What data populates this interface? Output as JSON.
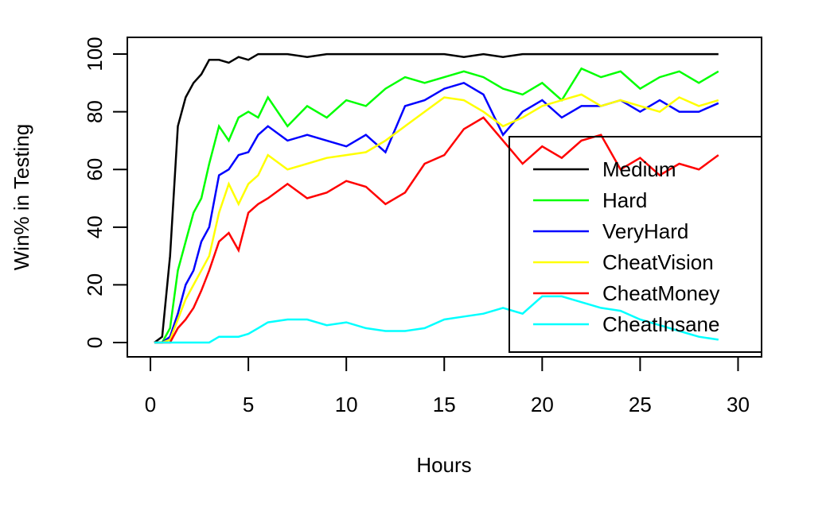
{
  "chart_data": {
    "type": "line",
    "xlabel": "Hours",
    "ylabel": "Win% in Testing",
    "x": [
      0.2,
      0.6,
      1,
      1.4,
      1.8,
      2.2,
      2.6,
      3,
      3.5,
      4,
      4.5,
      5,
      5.5,
      6,
      7,
      8,
      9,
      10,
      11,
      12,
      13,
      14,
      15,
      16,
      17,
      18,
      19,
      20,
      21,
      22,
      23,
      24,
      25,
      26,
      27,
      28,
      29
    ],
    "series": [
      {
        "name": "Medium",
        "color": "#000000",
        "values": [
          0,
          2,
          30,
          75,
          85,
          90,
          93,
          98,
          98,
          97,
          99,
          98,
          100,
          100,
          100,
          99,
          100,
          100,
          100,
          100,
          100,
          100,
          100,
          99,
          100,
          99,
          100,
          100,
          100,
          100,
          100,
          100,
          100,
          100,
          100,
          100,
          100
        ]
      },
      {
        "name": "Hard",
        "color": "#00ff00",
        "values": [
          0,
          0,
          5,
          25,
          35,
          45,
          50,
          62,
          75,
          70,
          78,
          80,
          78,
          85,
          75,
          82,
          78,
          84,
          82,
          88,
          92,
          90,
          92,
          94,
          92,
          88,
          86,
          90,
          84,
          95,
          92,
          94,
          88,
          92,
          94,
          90,
          94
        ]
      },
      {
        "name": "VeryHard",
        "color": "#0000ff",
        "values": [
          0,
          0,
          2,
          10,
          20,
          25,
          35,
          40,
          58,
          60,
          65,
          66,
          72,
          75,
          70,
          72,
          70,
          68,
          72,
          66,
          82,
          84,
          88,
          90,
          86,
          72,
          80,
          84,
          78,
          82,
          82,
          84,
          80,
          84,
          80,
          80,
          83
        ]
      },
      {
        "name": "CheatVision",
        "color": "#ffff00",
        "values": [
          0,
          0,
          1,
          8,
          15,
          20,
          25,
          30,
          45,
          55,
          48,
          55,
          58,
          65,
          60,
          62,
          64,
          65,
          66,
          70,
          75,
          80,
          85,
          84,
          80,
          75,
          78,
          82,
          84,
          86,
          82,
          84,
          82,
          80,
          85,
          82,
          84
        ]
      },
      {
        "name": "CheatMoney",
        "color": "#ff0000",
        "values": [
          0,
          0,
          0,
          5,
          8,
          12,
          18,
          25,
          35,
          38,
          32,
          45,
          48,
          50,
          55,
          50,
          52,
          56,
          54,
          48,
          52,
          62,
          65,
          74,
          78,
          70,
          62,
          68,
          64,
          70,
          72,
          60,
          64,
          58,
          62,
          60,
          65
        ]
      },
      {
        "name": "CheatInsane",
        "color": "#00ffff",
        "values": [
          0,
          0,
          0,
          0,
          0,
          0,
          0,
          0,
          2,
          2,
          2,
          3,
          5,
          7,
          8,
          8,
          6,
          7,
          5,
          4,
          4,
          5,
          8,
          9,
          10,
          12,
          10,
          16,
          16,
          14,
          12,
          11,
          8,
          6,
          4,
          2,
          1
        ]
      }
    ],
    "xlim": [
      -1.18,
      31.2
    ],
    "ylim": [
      -4.96,
      105.8
    ],
    "xticks": [
      0,
      5,
      10,
      15,
      20,
      25,
      30
    ],
    "yticks": [
      0,
      20,
      40,
      60,
      80,
      100
    ],
    "legend": "right"
  }
}
